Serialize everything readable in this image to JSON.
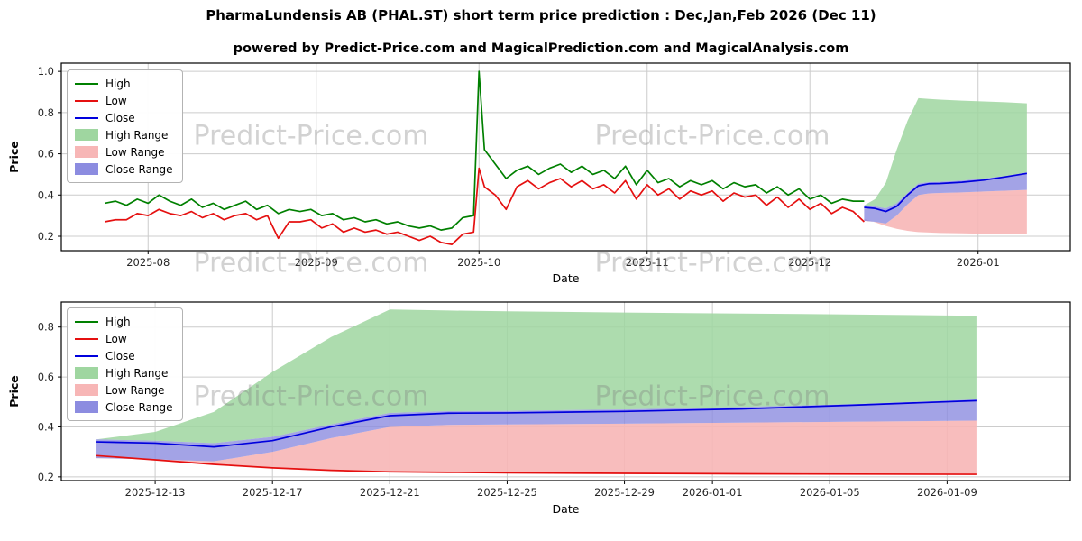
{
  "figure": {
    "title": "PharmaLundensis AB (PHAL.ST) short term price prediction : Dec,Jan,Feb 2026 (Dec 11)",
    "subtitle": "powered by Predict-Price.com and MagicalPrediction.com and MagicalAnalysis.com",
    "watermark_text": "Predict-Price.com"
  },
  "colors": {
    "high_line": "#008000",
    "low_line": "#e51010",
    "close_line": "#0000dd",
    "high_range": "#9fd6a0",
    "low_range": "#f7b6b6",
    "close_range": "#8c8ce0",
    "grid": "#cccccc",
    "axis": "#000000",
    "tick_text": "#262626"
  },
  "chart_data": [
    {
      "name": "history-and-prediction",
      "type": "line",
      "xlabel": "Date",
      "ylabel": "Price",
      "x_unit": "days since 2025-07-16",
      "xlim": [
        0,
        186
      ],
      "ylim": [
        0.13,
        1.04
      ],
      "grid": true,
      "legend_position": "upper-left",
      "yticks": [
        {
          "v": 0.2,
          "label": "0.2"
        },
        {
          "v": 0.4,
          "label": "0.4"
        },
        {
          "v": 0.6,
          "label": "0.6"
        },
        {
          "v": 0.8,
          "label": "0.8"
        },
        {
          "v": 1.0,
          "label": "1.0"
        }
      ],
      "xticks": [
        {
          "v": 16,
          "label": "2025-08"
        },
        {
          "v": 47,
          "label": "2025-09"
        },
        {
          "v": 77,
          "label": "2025-10"
        },
        {
          "v": 108,
          "label": "2025-11"
        },
        {
          "v": 138,
          "label": "2025-12"
        },
        {
          "v": 169,
          "label": "2026-01"
        }
      ],
      "bands": [
        {
          "name": "high-range",
          "label": "High Range",
          "color": "#9fd6a0",
          "opacity": 0.85,
          "x": [
            148,
            150,
            152,
            154,
            156,
            158,
            160,
            162,
            166,
            170,
            174,
            178
          ],
          "top": [
            0.35,
            0.38,
            0.46,
            0.62,
            0.76,
            0.87,
            0.866,
            0.863,
            0.858,
            0.854,
            0.85,
            0.845
          ],
          "bottom": [
            0.35,
            0.345,
            0.335,
            0.36,
            0.41,
            0.456,
            0.463,
            0.464,
            0.47,
            0.48,
            0.492,
            0.51
          ]
        },
        {
          "name": "low-range",
          "label": "Low Range",
          "color": "#f7b6b6",
          "opacity": 0.9,
          "x": [
            148,
            150,
            152,
            154,
            156,
            158,
            160,
            162,
            166,
            170,
            174,
            178
          ],
          "top": [
            0.275,
            0.27,
            0.262,
            0.3,
            0.355,
            0.4,
            0.408,
            0.41,
            0.413,
            0.417,
            0.421,
            0.425
          ],
          "bottom": [
            0.285,
            0.268,
            0.25,
            0.236,
            0.226,
            0.22,
            0.218,
            0.216,
            0.214,
            0.212,
            0.211,
            0.21
          ]
        },
        {
          "name": "close-range",
          "label": "Close Range",
          "color": "#8c8ce0",
          "opacity": 0.8,
          "x": [
            148,
            150,
            152,
            154,
            156,
            158,
            160,
            162,
            166,
            170,
            174,
            178
          ],
          "top": [
            0.35,
            0.345,
            0.335,
            0.36,
            0.41,
            0.456,
            0.463,
            0.464,
            0.47,
            0.48,
            0.492,
            0.51
          ],
          "bottom": [
            0.275,
            0.27,
            0.262,
            0.3,
            0.355,
            0.4,
            0.408,
            0.41,
            0.413,
            0.417,
            0.421,
            0.425
          ]
        }
      ],
      "series": [
        {
          "name": "high",
          "label": "High",
          "color": "#008000",
          "x": [
            8,
            10,
            12,
            14,
            16,
            18,
            20,
            22,
            24,
            26,
            28,
            30,
            32,
            34,
            36,
            38,
            40,
            42,
            44,
            46,
            48,
            50,
            52,
            54,
            56,
            58,
            60,
            62,
            64,
            66,
            68,
            70,
            72,
            74,
            76,
            77,
            78,
            80,
            82,
            84,
            86,
            88,
            90,
            92,
            94,
            96,
            98,
            100,
            102,
            104,
            106,
            108,
            110,
            112,
            114,
            116,
            118,
            120,
            122,
            124,
            126,
            128,
            130,
            132,
            134,
            136,
            138,
            140,
            142,
            144,
            146,
            148
          ],
          "y": [
            0.36,
            0.37,
            0.35,
            0.38,
            0.36,
            0.4,
            0.37,
            0.35,
            0.38,
            0.34,
            0.36,
            0.33,
            0.35,
            0.37,
            0.33,
            0.35,
            0.31,
            0.33,
            0.32,
            0.33,
            0.3,
            0.31,
            0.28,
            0.29,
            0.27,
            0.28,
            0.26,
            0.27,
            0.25,
            0.24,
            0.25,
            0.23,
            0.24,
            0.29,
            0.3,
            1.0,
            0.62,
            0.55,
            0.48,
            0.52,
            0.54,
            0.5,
            0.53,
            0.55,
            0.51,
            0.54,
            0.5,
            0.52,
            0.48,
            0.54,
            0.45,
            0.52,
            0.46,
            0.48,
            0.44,
            0.47,
            0.45,
            0.47,
            0.43,
            0.46,
            0.44,
            0.45,
            0.41,
            0.44,
            0.4,
            0.43,
            0.38,
            0.4,
            0.36,
            0.38,
            0.37,
            0.37
          ]
        },
        {
          "name": "low",
          "label": "Low",
          "color": "#e51010",
          "x": [
            8,
            10,
            12,
            14,
            16,
            18,
            20,
            22,
            24,
            26,
            28,
            30,
            32,
            34,
            36,
            38,
            40,
            42,
            44,
            46,
            48,
            50,
            52,
            54,
            56,
            58,
            60,
            62,
            64,
            66,
            68,
            70,
            72,
            74,
            76,
            77,
            78,
            80,
            82,
            84,
            86,
            88,
            90,
            92,
            94,
            96,
            98,
            100,
            102,
            104,
            106,
            108,
            110,
            112,
            114,
            116,
            118,
            120,
            122,
            124,
            126,
            128,
            130,
            132,
            134,
            136,
            138,
            140,
            142,
            144,
            146,
            148
          ],
          "y": [
            0.27,
            0.28,
            0.28,
            0.31,
            0.3,
            0.33,
            0.31,
            0.3,
            0.32,
            0.29,
            0.31,
            0.28,
            0.3,
            0.31,
            0.28,
            0.3,
            0.19,
            0.27,
            0.27,
            0.28,
            0.24,
            0.26,
            0.22,
            0.24,
            0.22,
            0.23,
            0.21,
            0.22,
            0.2,
            0.18,
            0.2,
            0.17,
            0.16,
            0.21,
            0.22,
            0.53,
            0.44,
            0.4,
            0.33,
            0.44,
            0.47,
            0.43,
            0.46,
            0.48,
            0.44,
            0.47,
            0.43,
            0.45,
            0.41,
            0.47,
            0.38,
            0.45,
            0.4,
            0.43,
            0.38,
            0.42,
            0.4,
            0.42,
            0.37,
            0.41,
            0.39,
            0.4,
            0.35,
            0.39,
            0.34,
            0.38,
            0.33,
            0.36,
            0.31,
            0.34,
            0.32,
            0.27
          ]
        },
        {
          "name": "close",
          "label": "Close",
          "color": "#0000dd",
          "x": [
            148,
            150,
            152,
            154,
            156,
            158,
            160,
            162,
            166,
            170,
            174,
            178
          ],
          "y": [
            0.34,
            0.335,
            0.32,
            0.345,
            0.4,
            0.445,
            0.455,
            0.456,
            0.462,
            0.472,
            0.488,
            0.505
          ]
        }
      ],
      "legend": [
        {
          "label": "High",
          "swatch": "line",
          "color": "#008000"
        },
        {
          "label": "Low",
          "swatch": "line",
          "color": "#e51010"
        },
        {
          "label": "Close",
          "swatch": "line",
          "color": "#0000dd"
        },
        {
          "label": "High Range",
          "swatch": "patch",
          "color": "#9fd6a0"
        },
        {
          "label": "Low Range",
          "swatch": "patch",
          "color": "#f7b6b6"
        },
        {
          "label": "Close Range",
          "swatch": "patch",
          "color": "#8c8ce0"
        }
      ]
    },
    {
      "name": "prediction-zoom",
      "type": "line",
      "xlabel": "Date",
      "ylabel": "Price",
      "x_unit": "days since 2025-12-11",
      "xlim": [
        -1.2,
        33.2
      ],
      "ylim": [
        0.185,
        0.9
      ],
      "grid": true,
      "legend_position": "upper-left",
      "yticks": [
        {
          "v": 0.2,
          "label": "0.2"
        },
        {
          "v": 0.4,
          "label": "0.4"
        },
        {
          "v": 0.6,
          "label": "0.6"
        },
        {
          "v": 0.8,
          "label": "0.8"
        }
      ],
      "xticks": [
        {
          "v": 2,
          "label": "2025-12-13"
        },
        {
          "v": 6,
          "label": "2025-12-17"
        },
        {
          "v": 10,
          "label": "2025-12-21"
        },
        {
          "v": 14,
          "label": "2025-12-25"
        },
        {
          "v": 18,
          "label": "2025-12-29"
        },
        {
          "v": 21,
          "label": "2026-01-01"
        },
        {
          "v": 25,
          "label": "2026-01-05"
        },
        {
          "v": 29,
          "label": "2026-01-09"
        }
      ],
      "bands": [
        {
          "name": "high-range",
          "label": "High Range",
          "color": "#9fd6a0",
          "opacity": 0.85,
          "x": [
            0,
            2,
            4,
            6,
            8,
            10,
            12,
            14,
            18,
            22,
            26,
            30
          ],
          "top": [
            0.35,
            0.38,
            0.46,
            0.62,
            0.76,
            0.87,
            0.866,
            0.863,
            0.858,
            0.854,
            0.85,
            0.845
          ],
          "bottom": [
            0.35,
            0.345,
            0.335,
            0.36,
            0.41,
            0.456,
            0.463,
            0.464,
            0.47,
            0.48,
            0.492,
            0.51
          ]
        },
        {
          "name": "low-range",
          "label": "Low Range",
          "color": "#f7b6b6",
          "opacity": 0.9,
          "x": [
            0,
            2,
            4,
            6,
            8,
            10,
            12,
            14,
            18,
            22,
            26,
            30
          ],
          "top": [
            0.275,
            0.27,
            0.262,
            0.3,
            0.355,
            0.4,
            0.408,
            0.41,
            0.413,
            0.417,
            0.421,
            0.425
          ],
          "bottom": [
            0.285,
            0.268,
            0.25,
            0.236,
            0.226,
            0.22,
            0.218,
            0.216,
            0.214,
            0.212,
            0.211,
            0.21
          ]
        },
        {
          "name": "close-range",
          "label": "Close Range",
          "color": "#8c8ce0",
          "opacity": 0.8,
          "x": [
            0,
            2,
            4,
            6,
            8,
            10,
            12,
            14,
            18,
            22,
            26,
            30
          ],
          "top": [
            0.35,
            0.345,
            0.335,
            0.36,
            0.41,
            0.456,
            0.463,
            0.464,
            0.47,
            0.48,
            0.492,
            0.51
          ],
          "bottom": [
            0.275,
            0.27,
            0.262,
            0.3,
            0.355,
            0.4,
            0.408,
            0.41,
            0.413,
            0.417,
            0.421,
            0.425
          ]
        }
      ],
      "series": [
        {
          "name": "low",
          "label": "Low",
          "color": "#e51010",
          "x": [
            0,
            2,
            4,
            6,
            8,
            10,
            12,
            14,
            18,
            22,
            26,
            30
          ],
          "y": [
            0.285,
            0.268,
            0.25,
            0.236,
            0.226,
            0.22,
            0.218,
            0.216,
            0.214,
            0.212,
            0.211,
            0.21
          ]
        },
        {
          "name": "close",
          "label": "Close",
          "color": "#0000dd",
          "x": [
            0,
            2,
            4,
            6,
            8,
            10,
            12,
            14,
            18,
            22,
            26,
            30
          ],
          "y": [
            0.34,
            0.335,
            0.32,
            0.345,
            0.4,
            0.445,
            0.455,
            0.456,
            0.462,
            0.472,
            0.488,
            0.505
          ]
        }
      ],
      "legend": [
        {
          "label": "High",
          "swatch": "line",
          "color": "#008000"
        },
        {
          "label": "Low",
          "swatch": "line",
          "color": "#e51010"
        },
        {
          "label": "Close",
          "swatch": "line",
          "color": "#0000dd"
        },
        {
          "label": "High Range",
          "swatch": "patch",
          "color": "#9fd6a0"
        },
        {
          "label": "Low Range",
          "swatch": "patch",
          "color": "#f7b6b6"
        },
        {
          "label": "Close Range",
          "swatch": "patch",
          "color": "#8c8ce0"
        }
      ]
    }
  ]
}
